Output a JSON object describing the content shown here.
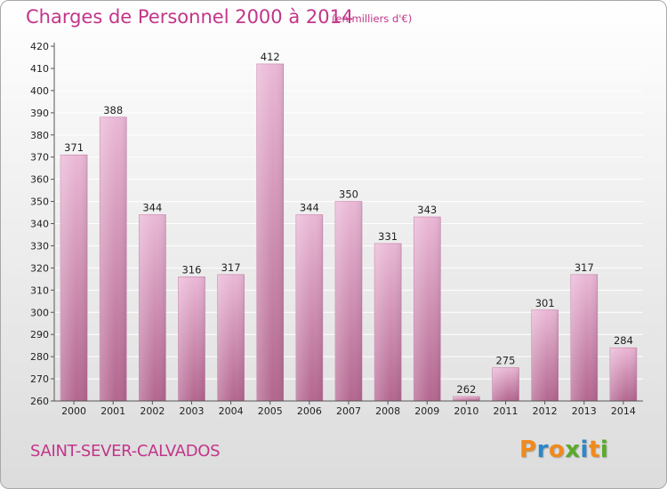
{
  "header": {
    "title": "Charges de Personnel 2000 à 2014",
    "unit": "(en milliers d'€)"
  },
  "footer": {
    "city": "SAINT-SEVER-CALVADOS",
    "logo": "Proxiti"
  },
  "colors": {
    "accent": "#c2358a",
    "bar_light": "#eab8d6",
    "bar_dark": "#b3668f",
    "logo_letters": [
      "#f08a1c",
      "#2d86c7",
      "#f08a1c",
      "#5aaa2a",
      "#2d86c7",
      "#f08a1c",
      "#5aaa2a"
    ]
  },
  "chart_data": {
    "type": "bar",
    "title": "Charges de Personnel 2000 à 2014",
    "subtitle": "(en milliers d'€)",
    "categories": [
      "2000",
      "2001",
      "2002",
      "2003",
      "2004",
      "2005",
      "2006",
      "2007",
      "2008",
      "2009",
      "2010",
      "2011",
      "2012",
      "2013",
      "2014"
    ],
    "values": [
      371,
      388,
      344,
      316,
      317,
      412,
      344,
      350,
      331,
      343,
      262,
      275,
      301,
      317,
      284
    ],
    "ylim": [
      260,
      420
    ],
    "yticks": [
      260,
      270,
      280,
      290,
      300,
      310,
      320,
      330,
      340,
      350,
      360,
      370,
      380,
      390,
      400,
      410,
      420
    ],
    "grid": true,
    "data_labels": true
  }
}
